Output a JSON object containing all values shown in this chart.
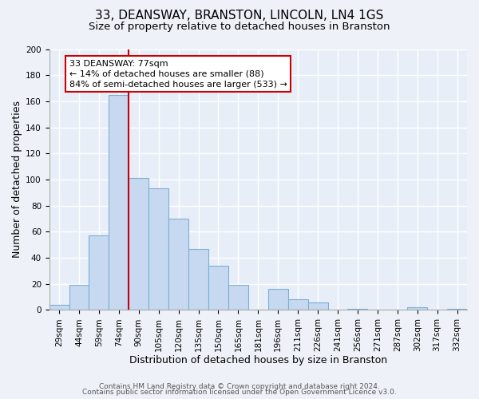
{
  "title": "33, DEANSWAY, BRANSTON, LINCOLN, LN4 1GS",
  "subtitle": "Size of property relative to detached houses in Branston",
  "xlabel": "Distribution of detached houses by size in Branston",
  "ylabel": "Number of detached properties",
  "bar_labels": [
    "29sqm",
    "44sqm",
    "59sqm",
    "74sqm",
    "90sqm",
    "105sqm",
    "120sqm",
    "135sqm",
    "150sqm",
    "165sqm",
    "181sqm",
    "196sqm",
    "211sqm",
    "226sqm",
    "241sqm",
    "256sqm",
    "271sqm",
    "287sqm",
    "302sqm",
    "317sqm",
    "332sqm"
  ],
  "bar_values": [
    4,
    19,
    57,
    165,
    101,
    93,
    70,
    47,
    34,
    19,
    0,
    16,
    8,
    6,
    0,
    1,
    0,
    0,
    2,
    0,
    1
  ],
  "bar_color": "#c7d9f0",
  "bar_edge_color": "#7bafd4",
  "vline_color": "#cc0000",
  "annotation_box_text": "33 DEANSWAY: 77sqm\n← 14% of detached houses are smaller (88)\n84% of semi-detached houses are larger (533) →",
  "annotation_box_edge_color": "#cc0000",
  "annotation_box_bg_color": "#ffffff",
  "ylim": [
    0,
    200
  ],
  "yticks": [
    0,
    20,
    40,
    60,
    80,
    100,
    120,
    140,
    160,
    180,
    200
  ],
  "footer_line1": "Contains HM Land Registry data © Crown copyright and database right 2024.",
  "footer_line2": "Contains public sector information licensed under the Open Government Licence v3.0.",
  "bg_color": "#eef2f8",
  "plot_bg_color": "#e8eef8",
  "grid_color": "#ffffff",
  "title_fontsize": 11,
  "subtitle_fontsize": 9.5,
  "axis_label_fontsize": 9,
  "tick_fontsize": 7.5,
  "footer_fontsize": 6.5,
  "ann_fontsize": 8
}
